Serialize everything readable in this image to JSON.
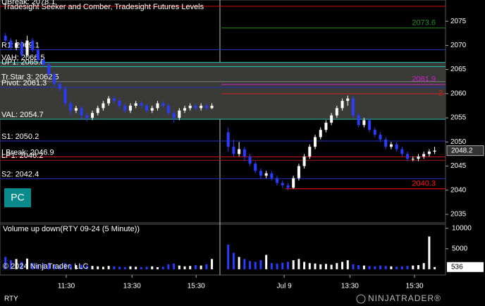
{
  "chart_data": {
    "type": "candlestick",
    "title": "Tradesight Seeker and Comber, Tradesight Futures Levels",
    "xlim": [
      -1,
      81
    ],
    "xticks": [
      {
        "value": 11.2,
        "label": "11:30"
      },
      {
        "value": 23.3,
        "label": "13:30"
      },
      {
        "value": 35.1,
        "label": "15:30"
      },
      {
        "value": 51.3,
        "label": "Jul 9"
      },
      {
        "value": 63.4,
        "label": "13:30"
      },
      {
        "value": 75.3,
        "label": "15:30"
      }
    ],
    "ylim": [
      2033.25,
      2079.4
    ],
    "yticks": [
      2035,
      2040,
      2045,
      2050,
      2055,
      2060,
      2065,
      2070,
      2075
    ],
    "up_color": "#ffffff",
    "down_color": "#2a3cff",
    "candles": {
      "x": [
        0,
        1,
        2,
        3,
        4,
        5,
        6,
        7,
        8,
        9,
        10,
        11,
        12,
        13,
        14,
        15,
        16,
        17,
        18,
        19,
        20,
        21,
        22,
        23,
        24,
        25,
        26,
        27,
        28,
        29,
        30,
        31,
        32,
        33,
        34,
        35,
        36,
        37,
        38,
        41,
        42,
        43,
        44,
        45,
        46,
        47,
        48,
        49,
        50,
        51,
        52,
        53,
        54,
        55,
        56,
        57,
        58,
        59,
        60,
        61,
        62,
        63,
        64,
        65,
        66,
        67,
        68,
        69,
        70,
        71,
        72,
        73,
        74,
        75,
        76,
        77,
        78,
        79
      ],
      "open": [
        2072,
        2071,
        2069.5,
        2070.5,
        2068,
        2071,
        2069,
        2067,
        2066,
        2064,
        2062,
        2061,
        2058,
        2056.5,
        2057,
        2055.5,
        2055,
        2056,
        2057,
        2058,
        2059,
        2058.5,
        2057.5,
        2056.5,
        2057.5,
        2058,
        2057.5,
        2056.5,
        2057,
        2058,
        2057.5,
        2056,
        2055,
        2056.5,
        2057,
        2057.5,
        2057,
        2057.5,
        2057,
        2052,
        2049,
        2047.5,
        2048.5,
        2047,
        2045.5,
        2044,
        2043,
        2043.5,
        2042.5,
        2041.5,
        2041,
        2040.5,
        2042.5,
        2045,
        2047,
        2049,
        2051,
        2052.5,
        2054,
        2055.5,
        2057,
        2058.5,
        2059,
        2055.5,
        2053.5,
        2054.5,
        2052.5,
        2051.5,
        2050.5,
        2049,
        2049.5,
        2048.5,
        2047.5,
        2046.5,
        2046.5,
        2047,
        2047.5,
        2048
      ],
      "high": [
        2072.6,
        2071.5,
        2071.2,
        2071,
        2072,
        2071.5,
        2069.5,
        2067.5,
        2066.5,
        2064.5,
        2062.5,
        2061.5,
        2058.5,
        2057.5,
        2057.5,
        2056,
        2056.5,
        2057.5,
        2058.5,
        2059.5,
        2059.5,
        2059,
        2058,
        2058,
        2058.5,
        2058.5,
        2058,
        2057.5,
        2058.5,
        2058.5,
        2058,
        2056.5,
        2057,
        2057.5,
        2058,
        2058,
        2058,
        2058,
        2058,
        2053,
        2050.5,
        2050,
        2049,
        2047.5,
        2046,
        2044.5,
        2044,
        2044,
        2043,
        2042,
        2041.5,
        2043,
        2045.5,
        2047.5,
        2049.5,
        2051.5,
        2053,
        2054.5,
        2056,
        2057.5,
        2059,
        2059.6,
        2059.5,
        2056,
        2055,
        2055,
        2053,
        2052,
        2051,
        2050,
        2050,
        2049,
        2048,
        2047,
        2047.5,
        2048,
        2048.5,
        2049
      ],
      "low": [
        2070.4,
        2069,
        2069,
        2067.5,
        2067.5,
        2068.5,
        2066.5,
        2065.5,
        2063.5,
        2061.5,
        2060.5,
        2057.5,
        2055.5,
        2056,
        2054.5,
        2054.3,
        2054.5,
        2055.5,
        2056.5,
        2057.5,
        2058,
        2057,
        2056,
        2056,
        2057,
        2057,
        2056,
        2056,
        2056.5,
        2057,
        2055.5,
        2054,
        2054.5,
        2056,
        2056.5,
        2056.5,
        2056.5,
        2056.5,
        2056.8,
        2048,
        2047,
        2047,
        2046,
        2045,
        2043.5,
        2042.5,
        2042.5,
        2042,
        2041,
        2040.5,
        2040,
        2040.3,
        2042,
        2044.5,
        2046.5,
        2048.5,
        2050.5,
        2052,
        2053.5,
        2055,
        2056.5,
        2057.5,
        2055,
        2053,
        2053,
        2052,
        2051,
        2050,
        2048.5,
        2048.5,
        2048,
        2047,
        2046,
        2046,
        2046,
        2046.5,
        2047,
        2047.5
      ],
      "close": [
        2071,
        2069.5,
        2070.5,
        2068,
        2071,
        2069,
        2067,
        2066,
        2064,
        2062,
        2061,
        2058,
        2056.5,
        2057,
        2055.5,
        2055,
        2056,
        2057,
        2058,
        2059,
        2058.5,
        2057.5,
        2056.5,
        2057.5,
        2058,
        2057.5,
        2056.5,
        2057,
        2058,
        2057.5,
        2056,
        2055,
        2056.5,
        2057,
        2057.5,
        2057,
        2057.5,
        2057,
        2057.5,
        2049,
        2047.5,
        2048.5,
        2047,
        2045.5,
        2044,
        2043,
        2043.5,
        2042.5,
        2041.5,
        2041,
        2040.5,
        2042.5,
        2045,
        2047,
        2049,
        2051,
        2052.5,
        2054,
        2055.5,
        2057,
        2058.5,
        2059,
        2055.5,
        2053.5,
        2054.5,
        2052.5,
        2051.5,
        2050.5,
        2049,
        2049.5,
        2048.5,
        2047.5,
        2046.5,
        2046.5,
        2047,
        2047.5,
        2048,
        2048.2
      ]
    },
    "levels": [
      {
        "label": "UBreak: 2078.1",
        "value": 2078.1,
        "color": "#d01010"
      },
      {
        "label": "R1: 2069.1",
        "value": 2069.1,
        "color": "#2233bb"
      },
      {
        "label": "VAH: 2066.5",
        "value": 2066.5,
        "color": "#20c0b0"
      },
      {
        "label": "UP1: 2065.6",
        "value": 2065.6,
        "color": "#20c0b0"
      },
      {
        "label": "Tr.Star 3: 2062.5",
        "value": 2062.5,
        "color": "#808080"
      },
      {
        "label": "Pivot: 2061.3",
        "value": 2061.3,
        "color": "#2233bb"
      },
      {
        "label": "VAL: 2054.7",
        "value": 2054.7,
        "color": "#20c0b0"
      },
      {
        "label": "S1: 2050.2",
        "value": 2050.2,
        "color": "#2233bb"
      },
      {
        "label": "LBreak: 2046.9",
        "value": 2046.9,
        "color": "#d01010"
      },
      {
        "label": "LP1: 2046.2",
        "value": 2046.2,
        "color": "#a01818"
      },
      {
        "label": "S2: 2042.4",
        "value": 2042.4,
        "color": "#2233bb"
      }
    ],
    "right_levels": [
      {
        "label": "2073.6",
        "value": 2073.6,
        "color": "#1f8a1f"
      },
      {
        "label": "2061.9",
        "value": 2061.9,
        "color": "#d020d0"
      },
      {
        "label": "2",
        "value": 2060,
        "color": "#d02020"
      },
      {
        "label": "2040.3",
        "value": 2040.3,
        "color": "#ff1010"
      }
    ],
    "volume": {
      "type": "bar",
      "title": "Volume up down(RTY 09-24 (5 Minute))",
      "ylim": [
        -1400,
        11000
      ],
      "yticks": [
        5000,
        10000
      ],
      "values": [
        3000,
        2200,
        2500,
        1800,
        2600,
        1500,
        1200,
        1400,
        1300,
        1100,
        900,
        1500,
        1200,
        1000,
        1100,
        900,
        800,
        700,
        600,
        800,
        700,
        600,
        500,
        700,
        600,
        500,
        600,
        700,
        500,
        600,
        1200,
        1400,
        900,
        700,
        800,
        1000,
        900,
        1200,
        2500,
        6000,
        4000,
        3000,
        2500,
        2000,
        1800,
        2200,
        3500,
        1500,
        1400,
        1600,
        1800,
        2200,
        2500,
        1800,
        1500,
        1400,
        1200,
        1300,
        1100,
        1500,
        1800,
        2200,
        1200,
        1000,
        900,
        800,
        700,
        900,
        800,
        700,
        600,
        700,
        800,
        900,
        1000,
        1500,
        8000,
        536
      ]
    }
  },
  "ui": {
    "button": "PC",
    "copyright": "© 2024 NinjaTrader, LLC",
    "symbol": "RTY",
    "brand": "NINJATRADER®"
  }
}
